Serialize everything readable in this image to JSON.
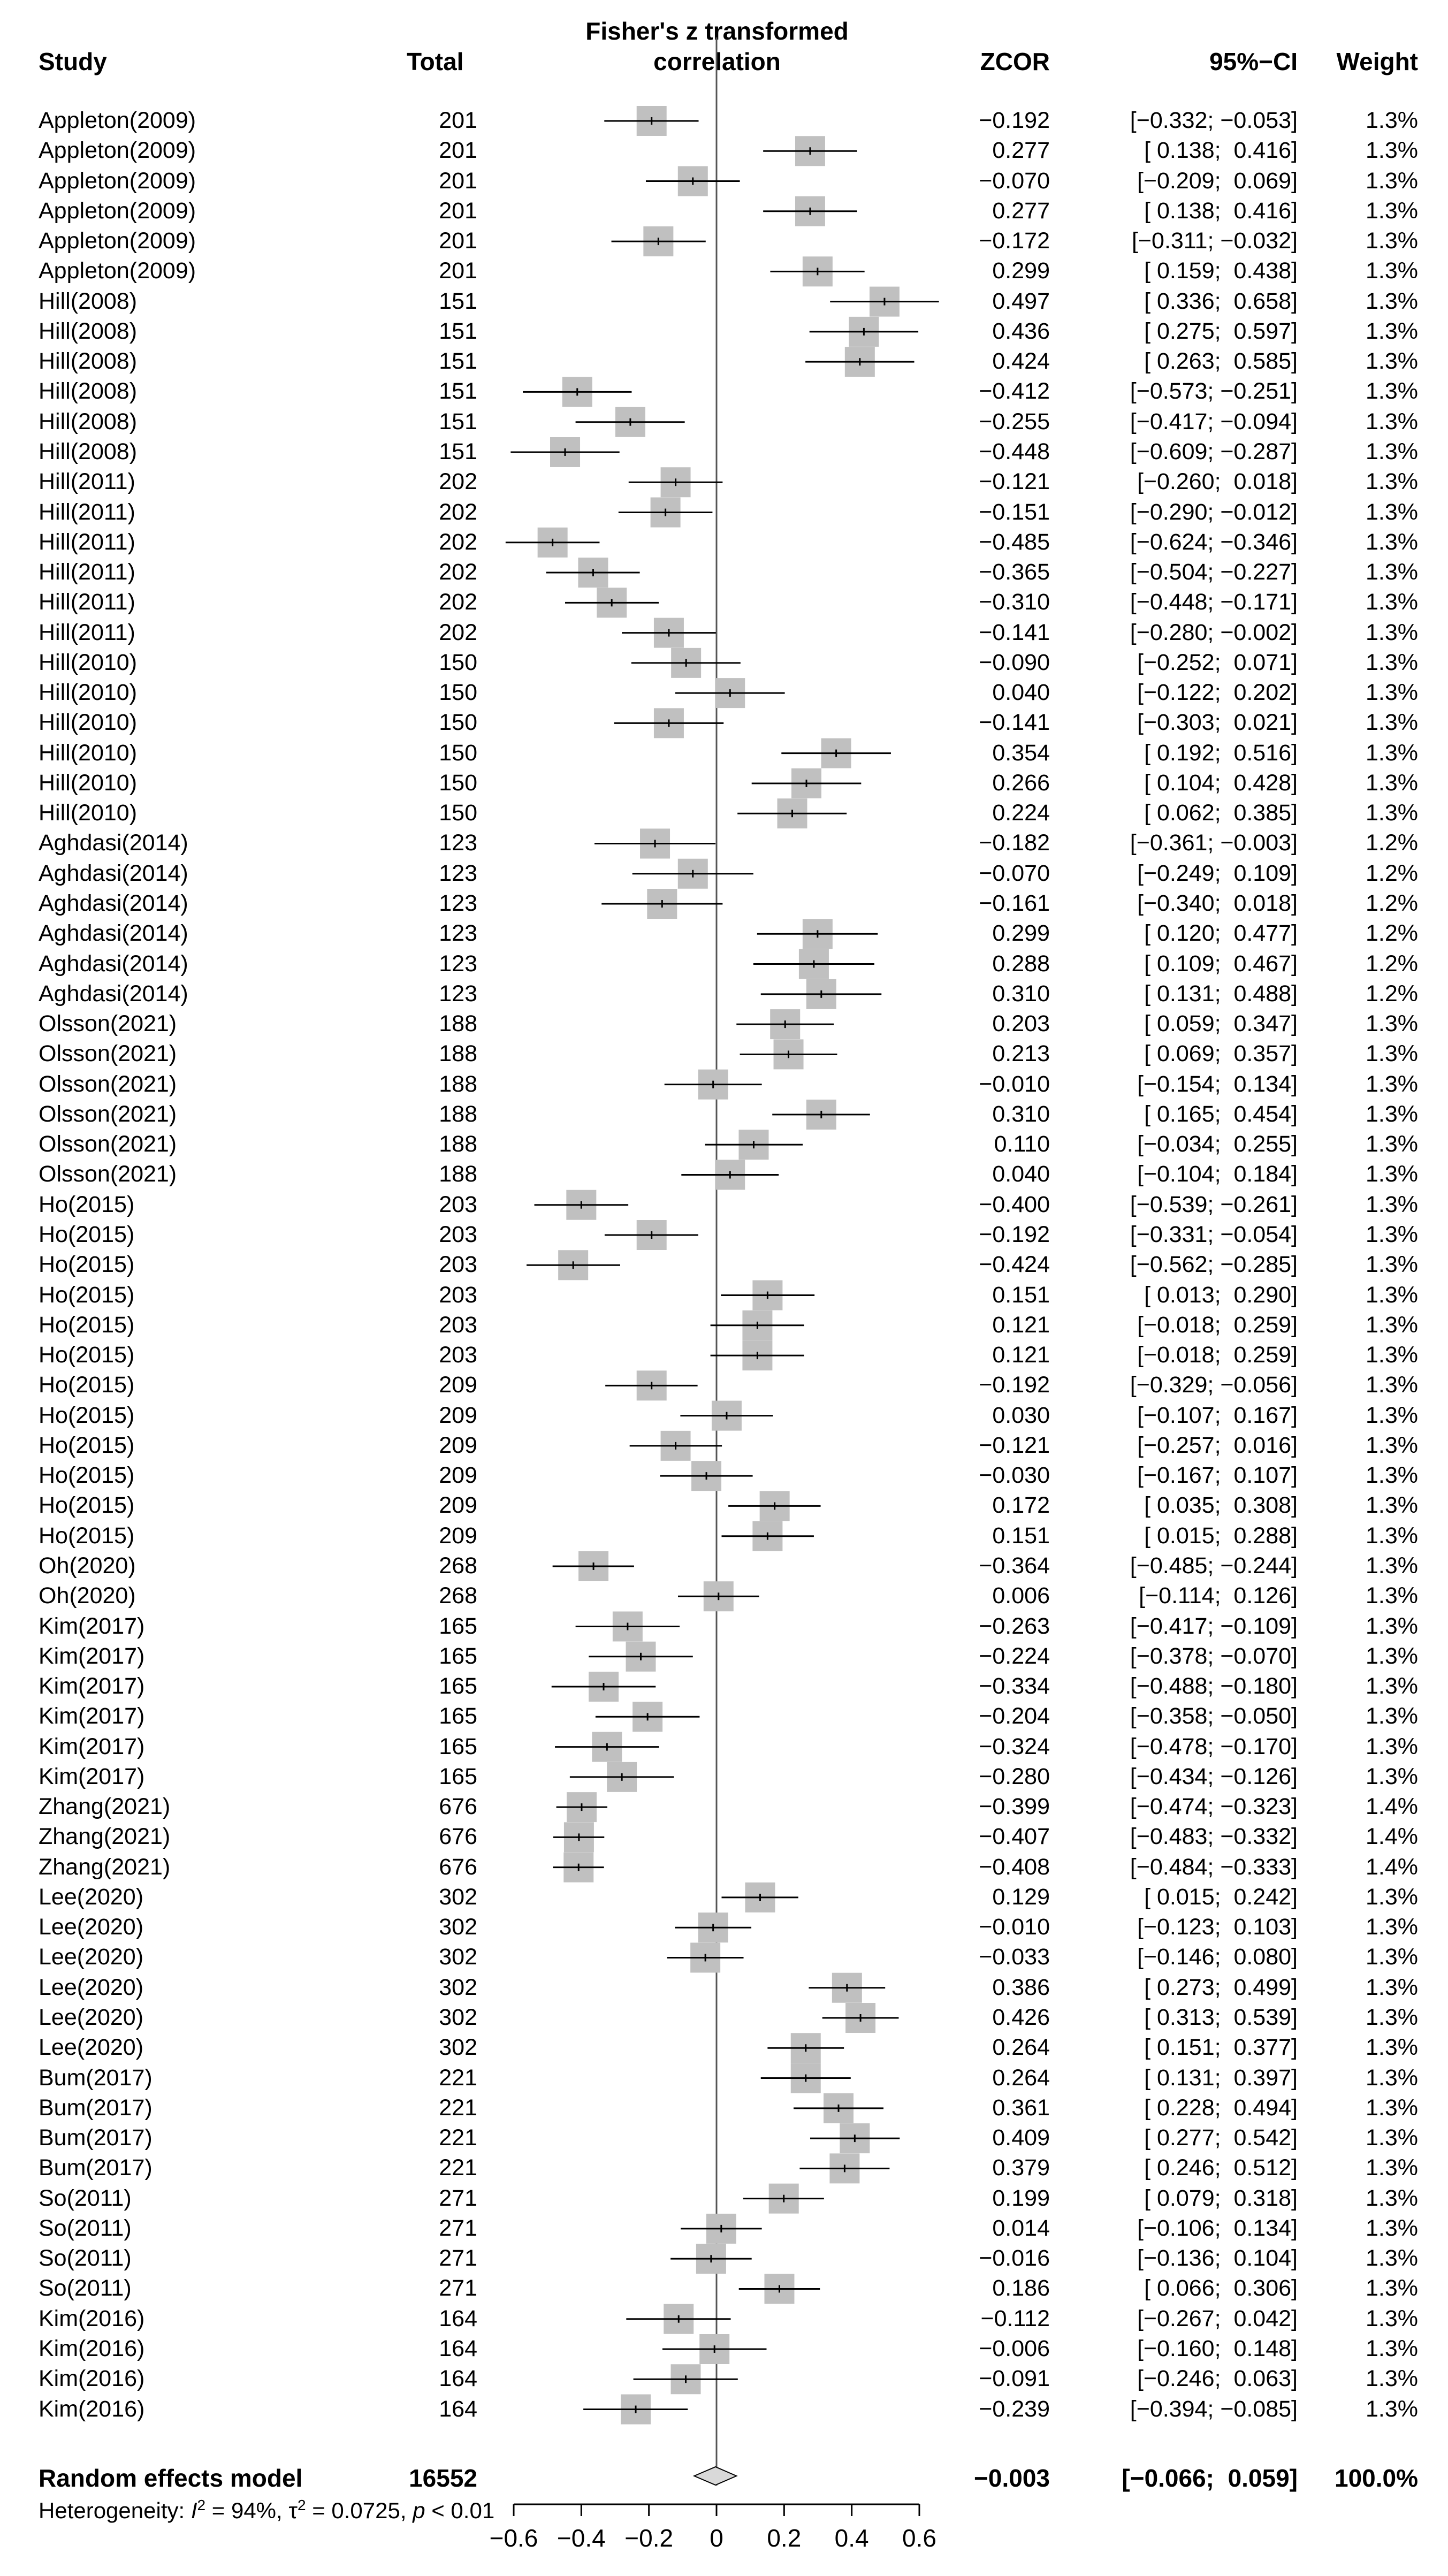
{
  "chart_data": {
    "type": "forest",
    "columns": {
      "study": "Study",
      "total": "Total",
      "plot_title_line1": "Fisher's z transformed",
      "plot_title_line2": "correlation",
      "effect": "ZCOR",
      "ci": "95%−CI",
      "weight": "Weight"
    },
    "rows": [
      {
        "study": "Appleton(2009)",
        "total": "201",
        "zcor": -0.192,
        "lo": -0.332,
        "hi": -0.053,
        "zcor_text": "−0.192",
        "ci_text": "[−0.332; −0.053]",
        "weight_text": "1.3%"
      },
      {
        "study": "Appleton(2009)",
        "total": "201",
        "zcor": 0.277,
        "lo": 0.138,
        "hi": 0.416,
        "zcor_text": "0.277",
        "ci_text": "[ 0.138;  0.416]",
        "weight_text": "1.3%"
      },
      {
        "study": "Appleton(2009)",
        "total": "201",
        "zcor": -0.07,
        "lo": -0.209,
        "hi": 0.069,
        "zcor_text": "−0.070",
        "ci_text": "[−0.209;  0.069]",
        "weight_text": "1.3%"
      },
      {
        "study": "Appleton(2009)",
        "total": "201",
        "zcor": 0.277,
        "lo": 0.138,
        "hi": 0.416,
        "zcor_text": "0.277",
        "ci_text": "[ 0.138;  0.416]",
        "weight_text": "1.3%"
      },
      {
        "study": "Appleton(2009)",
        "total": "201",
        "zcor": -0.172,
        "lo": -0.311,
        "hi": -0.032,
        "zcor_text": "−0.172",
        "ci_text": "[−0.311; −0.032]",
        "weight_text": "1.3%"
      },
      {
        "study": "Appleton(2009)",
        "total": "201",
        "zcor": 0.299,
        "lo": 0.159,
        "hi": 0.438,
        "zcor_text": "0.299",
        "ci_text": "[ 0.159;  0.438]",
        "weight_text": "1.3%"
      },
      {
        "study": "Hill(2008)",
        "total": "151",
        "zcor": 0.497,
        "lo": 0.336,
        "hi": 0.658,
        "zcor_text": "0.497",
        "ci_text": "[ 0.336;  0.658]",
        "weight_text": "1.3%"
      },
      {
        "study": "Hill(2008)",
        "total": "151",
        "zcor": 0.436,
        "lo": 0.275,
        "hi": 0.597,
        "zcor_text": "0.436",
        "ci_text": "[ 0.275;  0.597]",
        "weight_text": "1.3%"
      },
      {
        "study": "Hill(2008)",
        "total": "151",
        "zcor": 0.424,
        "lo": 0.263,
        "hi": 0.585,
        "zcor_text": "0.424",
        "ci_text": "[ 0.263;  0.585]",
        "weight_text": "1.3%"
      },
      {
        "study": "Hill(2008)",
        "total": "151",
        "zcor": -0.412,
        "lo": -0.573,
        "hi": -0.251,
        "zcor_text": "−0.412",
        "ci_text": "[−0.573; −0.251]",
        "weight_text": "1.3%"
      },
      {
        "study": "Hill(2008)",
        "total": "151",
        "zcor": -0.255,
        "lo": -0.417,
        "hi": -0.094,
        "zcor_text": "−0.255",
        "ci_text": "[−0.417; −0.094]",
        "weight_text": "1.3%"
      },
      {
        "study": "Hill(2008)",
        "total": "151",
        "zcor": -0.448,
        "lo": -0.609,
        "hi": -0.287,
        "zcor_text": "−0.448",
        "ci_text": "[−0.609; −0.287]",
        "weight_text": "1.3%"
      },
      {
        "study": "Hill(2011)",
        "total": "202",
        "zcor": -0.121,
        "lo": -0.26,
        "hi": 0.018,
        "zcor_text": "−0.121",
        "ci_text": "[−0.260;  0.018]",
        "weight_text": "1.3%"
      },
      {
        "study": "Hill(2011)",
        "total": "202",
        "zcor": -0.151,
        "lo": -0.29,
        "hi": -0.012,
        "zcor_text": "−0.151",
        "ci_text": "[−0.290; −0.012]",
        "weight_text": "1.3%"
      },
      {
        "study": "Hill(2011)",
        "total": "202",
        "zcor": -0.485,
        "lo": -0.624,
        "hi": -0.346,
        "zcor_text": "−0.485",
        "ci_text": "[−0.624; −0.346]",
        "weight_text": "1.3%"
      },
      {
        "study": "Hill(2011)",
        "total": "202",
        "zcor": -0.365,
        "lo": -0.504,
        "hi": -0.227,
        "zcor_text": "−0.365",
        "ci_text": "[−0.504; −0.227]",
        "weight_text": "1.3%"
      },
      {
        "study": "Hill(2011)",
        "total": "202",
        "zcor": -0.31,
        "lo": -0.448,
        "hi": -0.171,
        "zcor_text": "−0.310",
        "ci_text": "[−0.448; −0.171]",
        "weight_text": "1.3%"
      },
      {
        "study": "Hill(2011)",
        "total": "202",
        "zcor": -0.141,
        "lo": -0.28,
        "hi": -0.002,
        "zcor_text": "−0.141",
        "ci_text": "[−0.280; −0.002]",
        "weight_text": "1.3%"
      },
      {
        "study": "Hill(2010)",
        "total": "150",
        "zcor": -0.09,
        "lo": -0.252,
        "hi": 0.071,
        "zcor_text": "−0.090",
        "ci_text": "[−0.252;  0.071]",
        "weight_text": "1.3%"
      },
      {
        "study": "Hill(2010)",
        "total": "150",
        "zcor": 0.04,
        "lo": -0.122,
        "hi": 0.202,
        "zcor_text": "0.040",
        "ci_text": "[−0.122;  0.202]",
        "weight_text": "1.3%"
      },
      {
        "study": "Hill(2010)",
        "total": "150",
        "zcor": -0.141,
        "lo": -0.303,
        "hi": 0.021,
        "zcor_text": "−0.141",
        "ci_text": "[−0.303;  0.021]",
        "weight_text": "1.3%"
      },
      {
        "study": "Hill(2010)",
        "total": "150",
        "zcor": 0.354,
        "lo": 0.192,
        "hi": 0.516,
        "zcor_text": "0.354",
        "ci_text": "[ 0.192;  0.516]",
        "weight_text": "1.3%"
      },
      {
        "study": "Hill(2010)",
        "total": "150",
        "zcor": 0.266,
        "lo": 0.104,
        "hi": 0.428,
        "zcor_text": "0.266",
        "ci_text": "[ 0.104;  0.428]",
        "weight_text": "1.3%"
      },
      {
        "study": "Hill(2010)",
        "total": "150",
        "zcor": 0.224,
        "lo": 0.062,
        "hi": 0.385,
        "zcor_text": "0.224",
        "ci_text": "[ 0.062;  0.385]",
        "weight_text": "1.3%"
      },
      {
        "study": "Aghdasi(2014)",
        "total": "123",
        "zcor": -0.182,
        "lo": -0.361,
        "hi": -0.003,
        "zcor_text": "−0.182",
        "ci_text": "[−0.361; −0.003]",
        "weight_text": "1.2%"
      },
      {
        "study": "Aghdasi(2014)",
        "total": "123",
        "zcor": -0.07,
        "lo": -0.249,
        "hi": 0.109,
        "zcor_text": "−0.070",
        "ci_text": "[−0.249;  0.109]",
        "weight_text": "1.2%"
      },
      {
        "study": "Aghdasi(2014)",
        "total": "123",
        "zcor": -0.161,
        "lo": -0.34,
        "hi": 0.018,
        "zcor_text": "−0.161",
        "ci_text": "[−0.340;  0.018]",
        "weight_text": "1.2%"
      },
      {
        "study": "Aghdasi(2014)",
        "total": "123",
        "zcor": 0.299,
        "lo": 0.12,
        "hi": 0.477,
        "zcor_text": "0.299",
        "ci_text": "[ 0.120;  0.477]",
        "weight_text": "1.2%"
      },
      {
        "study": "Aghdasi(2014)",
        "total": "123",
        "zcor": 0.288,
        "lo": 0.109,
        "hi": 0.467,
        "zcor_text": "0.288",
        "ci_text": "[ 0.109;  0.467]",
        "weight_text": "1.2%"
      },
      {
        "study": "Aghdasi(2014)",
        "total": "123",
        "zcor": 0.31,
        "lo": 0.131,
        "hi": 0.488,
        "zcor_text": "0.310",
        "ci_text": "[ 0.131;  0.488]",
        "weight_text": "1.2%"
      },
      {
        "study": "Olsson(2021)",
        "total": "188",
        "zcor": 0.203,
        "lo": 0.059,
        "hi": 0.347,
        "zcor_text": "0.203",
        "ci_text": "[ 0.059;  0.347]",
        "weight_text": "1.3%"
      },
      {
        "study": "Olsson(2021)",
        "total": "188",
        "zcor": 0.213,
        "lo": 0.069,
        "hi": 0.357,
        "zcor_text": "0.213",
        "ci_text": "[ 0.069;  0.357]",
        "weight_text": "1.3%"
      },
      {
        "study": "Olsson(2021)",
        "total": "188",
        "zcor": -0.01,
        "lo": -0.154,
        "hi": 0.134,
        "zcor_text": "−0.010",
        "ci_text": "[−0.154;  0.134]",
        "weight_text": "1.3%"
      },
      {
        "study": "Olsson(2021)",
        "total": "188",
        "zcor": 0.31,
        "lo": 0.165,
        "hi": 0.454,
        "zcor_text": "0.310",
        "ci_text": "[ 0.165;  0.454]",
        "weight_text": "1.3%"
      },
      {
        "study": "Olsson(2021)",
        "total": "188",
        "zcor": 0.11,
        "lo": -0.034,
        "hi": 0.255,
        "zcor_text": "0.110",
        "ci_text": "[−0.034;  0.255]",
        "weight_text": "1.3%"
      },
      {
        "study": "Olsson(2021)",
        "total": "188",
        "zcor": 0.04,
        "lo": -0.104,
        "hi": 0.184,
        "zcor_text": "0.040",
        "ci_text": "[−0.104;  0.184]",
        "weight_text": "1.3%"
      },
      {
        "study": "Ho(2015)",
        "total": "203",
        "zcor": -0.4,
        "lo": -0.539,
        "hi": -0.261,
        "zcor_text": "−0.400",
        "ci_text": "[−0.539; −0.261]",
        "weight_text": "1.3%"
      },
      {
        "study": "Ho(2015)",
        "total": "203",
        "zcor": -0.192,
        "lo": -0.331,
        "hi": -0.054,
        "zcor_text": "−0.192",
        "ci_text": "[−0.331; −0.054]",
        "weight_text": "1.3%"
      },
      {
        "study": "Ho(2015)",
        "total": "203",
        "zcor": -0.424,
        "lo": -0.562,
        "hi": -0.285,
        "zcor_text": "−0.424",
        "ci_text": "[−0.562; −0.285]",
        "weight_text": "1.3%"
      },
      {
        "study": "Ho(2015)",
        "total": "203",
        "zcor": 0.151,
        "lo": 0.013,
        "hi": 0.29,
        "zcor_text": "0.151",
        "ci_text": "[ 0.013;  0.290]",
        "weight_text": "1.3%"
      },
      {
        "study": "Ho(2015)",
        "total": "203",
        "zcor": 0.121,
        "lo": -0.018,
        "hi": 0.259,
        "zcor_text": "0.121",
        "ci_text": "[−0.018;  0.259]",
        "weight_text": "1.3%"
      },
      {
        "study": "Ho(2015)",
        "total": "203",
        "zcor": 0.121,
        "lo": -0.018,
        "hi": 0.259,
        "zcor_text": "0.121",
        "ci_text": "[−0.018;  0.259]",
        "weight_text": "1.3%"
      },
      {
        "study": "Ho(2015)",
        "total": "209",
        "zcor": -0.192,
        "lo": -0.329,
        "hi": -0.056,
        "zcor_text": "−0.192",
        "ci_text": "[−0.329; −0.056]",
        "weight_text": "1.3%"
      },
      {
        "study": "Ho(2015)",
        "total": "209",
        "zcor": 0.03,
        "lo": -0.107,
        "hi": 0.167,
        "zcor_text": "0.030",
        "ci_text": "[−0.107;  0.167]",
        "weight_text": "1.3%"
      },
      {
        "study": "Ho(2015)",
        "total": "209",
        "zcor": -0.121,
        "lo": -0.257,
        "hi": 0.016,
        "zcor_text": "−0.121",
        "ci_text": "[−0.257;  0.016]",
        "weight_text": "1.3%"
      },
      {
        "study": "Ho(2015)",
        "total": "209",
        "zcor": -0.03,
        "lo": -0.167,
        "hi": 0.107,
        "zcor_text": "−0.030",
        "ci_text": "[−0.167;  0.107]",
        "weight_text": "1.3%"
      },
      {
        "study": "Ho(2015)",
        "total": "209",
        "zcor": 0.172,
        "lo": 0.035,
        "hi": 0.308,
        "zcor_text": "0.172",
        "ci_text": "[ 0.035;  0.308]",
        "weight_text": "1.3%"
      },
      {
        "study": "Ho(2015)",
        "total": "209",
        "zcor": 0.151,
        "lo": 0.015,
        "hi": 0.288,
        "zcor_text": "0.151",
        "ci_text": "[ 0.015;  0.288]",
        "weight_text": "1.3%"
      },
      {
        "study": "Oh(2020)",
        "total": "268",
        "zcor": -0.364,
        "lo": -0.485,
        "hi": -0.244,
        "zcor_text": "−0.364",
        "ci_text": "[−0.485; −0.244]",
        "weight_text": "1.3%"
      },
      {
        "study": "Oh(2020)",
        "total": "268",
        "zcor": 0.006,
        "lo": -0.114,
        "hi": 0.126,
        "zcor_text": "0.006",
        "ci_text": "[−0.114;  0.126]",
        "weight_text": "1.3%"
      },
      {
        "study": "Kim(2017)",
        "total": "165",
        "zcor": -0.263,
        "lo": -0.417,
        "hi": -0.109,
        "zcor_text": "−0.263",
        "ci_text": "[−0.417; −0.109]",
        "weight_text": "1.3%"
      },
      {
        "study": "Kim(2017)",
        "total": "165",
        "zcor": -0.224,
        "lo": -0.378,
        "hi": -0.07,
        "zcor_text": "−0.224",
        "ci_text": "[−0.378; −0.070]",
        "weight_text": "1.3%"
      },
      {
        "study": "Kim(2017)",
        "total": "165",
        "zcor": -0.334,
        "lo": -0.488,
        "hi": -0.18,
        "zcor_text": "−0.334",
        "ci_text": "[−0.488; −0.180]",
        "weight_text": "1.3%"
      },
      {
        "study": "Kim(2017)",
        "total": "165",
        "zcor": -0.204,
        "lo": -0.358,
        "hi": -0.05,
        "zcor_text": "−0.204",
        "ci_text": "[−0.358; −0.050]",
        "weight_text": "1.3%"
      },
      {
        "study": "Kim(2017)",
        "total": "165",
        "zcor": -0.324,
        "lo": -0.478,
        "hi": -0.17,
        "zcor_text": "−0.324",
        "ci_text": "[−0.478; −0.170]",
        "weight_text": "1.3%"
      },
      {
        "study": "Kim(2017)",
        "total": "165",
        "zcor": -0.28,
        "lo": -0.434,
        "hi": -0.126,
        "zcor_text": "−0.280",
        "ci_text": "[−0.434; −0.126]",
        "weight_text": "1.3%"
      },
      {
        "study": "Zhang(2021)",
        "total": "676",
        "zcor": -0.399,
        "lo": -0.474,
        "hi": -0.323,
        "zcor_text": "−0.399",
        "ci_text": "[−0.474; −0.323]",
        "weight_text": "1.4%"
      },
      {
        "study": "Zhang(2021)",
        "total": "676",
        "zcor": -0.407,
        "lo": -0.483,
        "hi": -0.332,
        "zcor_text": "−0.407",
        "ci_text": "[−0.483; −0.332]",
        "weight_text": "1.4%"
      },
      {
        "study": "Zhang(2021)",
        "total": "676",
        "zcor": -0.408,
        "lo": -0.484,
        "hi": -0.333,
        "zcor_text": "−0.408",
        "ci_text": "[−0.484; −0.333]",
        "weight_text": "1.4%"
      },
      {
        "study": "Lee(2020)",
        "total": "302",
        "zcor": 0.129,
        "lo": 0.015,
        "hi": 0.242,
        "zcor_text": "0.129",
        "ci_text": "[ 0.015;  0.242]",
        "weight_text": "1.3%"
      },
      {
        "study": "Lee(2020)",
        "total": "302",
        "zcor": -0.01,
        "lo": -0.123,
        "hi": 0.103,
        "zcor_text": "−0.010",
        "ci_text": "[−0.123;  0.103]",
        "weight_text": "1.3%"
      },
      {
        "study": "Lee(2020)",
        "total": "302",
        "zcor": -0.033,
        "lo": -0.146,
        "hi": 0.08,
        "zcor_text": "−0.033",
        "ci_text": "[−0.146;  0.080]",
        "weight_text": "1.3%"
      },
      {
        "study": "Lee(2020)",
        "total": "302",
        "zcor": 0.386,
        "lo": 0.273,
        "hi": 0.499,
        "zcor_text": "0.386",
        "ci_text": "[ 0.273;  0.499]",
        "weight_text": "1.3%"
      },
      {
        "study": "Lee(2020)",
        "total": "302",
        "zcor": 0.426,
        "lo": 0.313,
        "hi": 0.539,
        "zcor_text": "0.426",
        "ci_text": "[ 0.313;  0.539]",
        "weight_text": "1.3%"
      },
      {
        "study": "Lee(2020)",
        "total": "302",
        "zcor": 0.264,
        "lo": 0.151,
        "hi": 0.377,
        "zcor_text": "0.264",
        "ci_text": "[ 0.151;  0.377]",
        "weight_text": "1.3%"
      },
      {
        "study": "Bum(2017)",
        "total": "221",
        "zcor": 0.264,
        "lo": 0.131,
        "hi": 0.397,
        "zcor_text": "0.264",
        "ci_text": "[ 0.131;  0.397]",
        "weight_text": "1.3%"
      },
      {
        "study": "Bum(2017)",
        "total": "221",
        "zcor": 0.361,
        "lo": 0.228,
        "hi": 0.494,
        "zcor_text": "0.361",
        "ci_text": "[ 0.228;  0.494]",
        "weight_text": "1.3%"
      },
      {
        "study": "Bum(2017)",
        "total": "221",
        "zcor": 0.409,
        "lo": 0.277,
        "hi": 0.542,
        "zcor_text": "0.409",
        "ci_text": "[ 0.277;  0.542]",
        "weight_text": "1.3%"
      },
      {
        "study": "Bum(2017)",
        "total": "221",
        "zcor": 0.379,
        "lo": 0.246,
        "hi": 0.512,
        "zcor_text": "0.379",
        "ci_text": "[ 0.246;  0.512]",
        "weight_text": "1.3%"
      },
      {
        "study": "So(2011)",
        "total": "271",
        "zcor": 0.199,
        "lo": 0.079,
        "hi": 0.318,
        "zcor_text": "0.199",
        "ci_text": "[ 0.079;  0.318]",
        "weight_text": "1.3%"
      },
      {
        "study": "So(2011)",
        "total": "271",
        "zcor": 0.014,
        "lo": -0.106,
        "hi": 0.134,
        "zcor_text": "0.014",
        "ci_text": "[−0.106;  0.134]",
        "weight_text": "1.3%"
      },
      {
        "study": "So(2011)",
        "total": "271",
        "zcor": -0.016,
        "lo": -0.136,
        "hi": 0.104,
        "zcor_text": "−0.016",
        "ci_text": "[−0.136;  0.104]",
        "weight_text": "1.3%"
      },
      {
        "study": "So(2011)",
        "total": "271",
        "zcor": 0.186,
        "lo": 0.066,
        "hi": 0.306,
        "zcor_text": "0.186",
        "ci_text": "[ 0.066;  0.306]",
        "weight_text": "1.3%"
      },
      {
        "study": "Kim(2016)",
        "total": "164",
        "zcor": -0.112,
        "lo": -0.267,
        "hi": 0.042,
        "zcor_text": "−0.112",
        "ci_text": "[−0.267;  0.042]",
        "weight_text": "1.3%"
      },
      {
        "study": "Kim(2016)",
        "total": "164",
        "zcor": -0.006,
        "lo": -0.16,
        "hi": 0.148,
        "zcor_text": "−0.006",
        "ci_text": "[−0.160;  0.148]",
        "weight_text": "1.3%"
      },
      {
        "study": "Kim(2016)",
        "total": "164",
        "zcor": -0.091,
        "lo": -0.246,
        "hi": 0.063,
        "zcor_text": "−0.091",
        "ci_text": "[−0.246;  0.063]",
        "weight_text": "1.3%"
      },
      {
        "study": "Kim(2016)",
        "total": "164",
        "zcor": -0.239,
        "lo": -0.394,
        "hi": -0.085,
        "zcor_text": "−0.239",
        "ci_text": "[−0.394; −0.085]",
        "weight_text": "1.3%"
      }
    ],
    "summary": {
      "label": "Random effects model",
      "total": "16552",
      "zcor": -0.003,
      "lo": -0.066,
      "hi": 0.059,
      "zcor_text": "−0.003",
      "ci_text": "[−0.066;  0.059]",
      "weight_text": "100.0%"
    },
    "heterogeneity": {
      "prefix": "Heterogeneity: ",
      "i2_symbol": "I",
      "i2_sup": "2",
      "i2_value": " = 94%, ",
      "tau_symbol": "τ",
      "tau_sup": "2",
      "tau_value": " = 0.0725, ",
      "p_symbol": "p",
      "p_value": " < 0.01"
    },
    "x_axis": {
      "ticks": [
        -0.6,
        -0.4,
        -0.2,
        0,
        0.2,
        0.4,
        0.6
      ],
      "tick_labels": [
        "−0.6",
        "−0.4",
        "−0.2",
        "0",
        "0.2",
        "0.4",
        "0.6"
      ],
      "range": [
        -0.6,
        0.6
      ]
    },
    "colors": {
      "box": "#c0c0c0",
      "line": "#000000",
      "diamond_fill": "#d9d9d9",
      "reference_line": "#555555"
    }
  }
}
